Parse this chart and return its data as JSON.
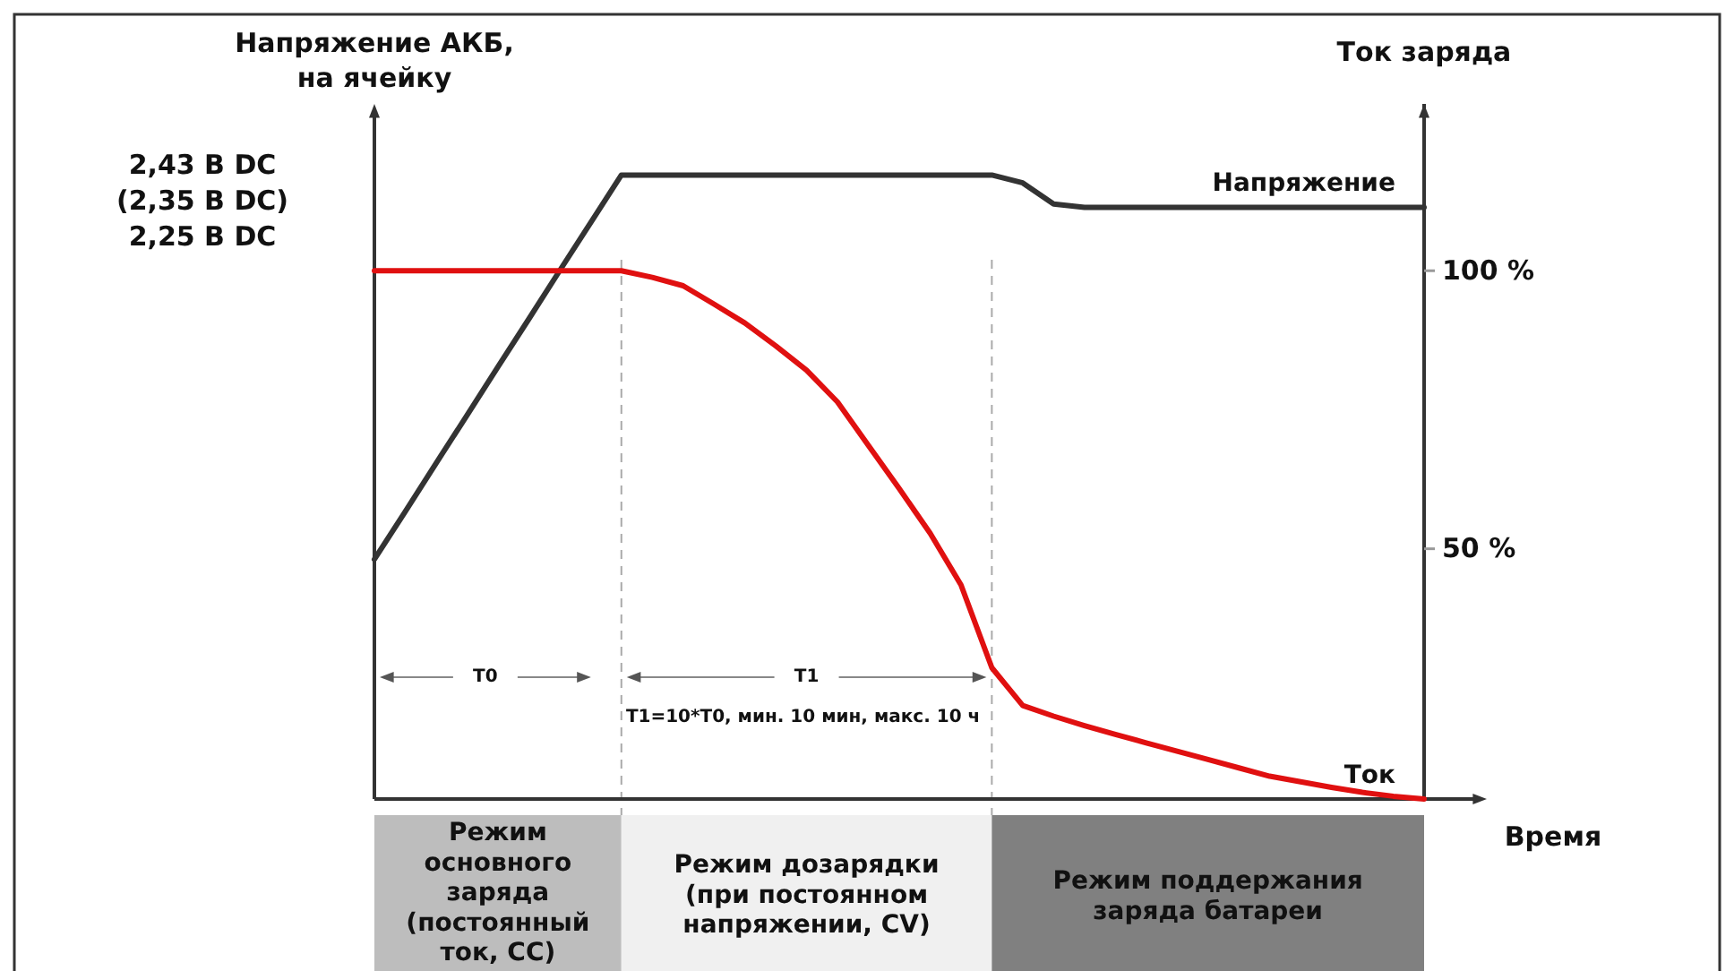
{
  "chart_data": {
    "type": "line",
    "xlabel": "Время",
    "ylabel": "Напряжение АКБ,\nна ячейку",
    "y2label": "Ток заряда",
    "categories": [
      null,
      null,
      null,
      null,
      null,
      null,
      null,
      null,
      null,
      null,
      null,
      null,
      null,
      null,
      null,
      null,
      null,
      null,
      null,
      null,
      null,
      null,
      null,
      null,
      null,
      null,
      null,
      null,
      null,
      null,
      null,
      null,
      null,
      null,
      null
    ],
    "ylim": [
      5,
      130
    ],
    "yticks": [
      {
        "value": 50,
        "label": "50 %"
      },
      {
        "value": 100,
        "label": "100 %"
      }
    ],
    "series": [
      {
        "name": "Напряжение",
        "color": "#333333",
        "values": [
          48.1,
          56.7,
          65.4,
          74.0,
          82.7,
          91.3,
          100.0,
          108.6,
          117.2,
          117.2,
          117.2,
          117.2,
          117.2,
          117.2,
          117.2,
          117.2,
          117.2,
          117.2,
          117.2,
          117.2,
          117.2,
          115.8,
          112.0,
          111.4,
          111.4,
          111.4,
          111.4,
          111.4,
          111.4,
          111.4,
          111.4,
          111.4,
          111.4,
          111.4,
          111.4
        ]
      },
      {
        "name": "Ток",
        "color": "#e01010",
        "values": [
          100,
          100,
          100,
          100,
          100,
          100,
          100,
          100,
          100,
          98.8,
          97.3,
          94.0,
          90.6,
          86.5,
          82.1,
          76.4,
          68.6,
          60.8,
          52.8,
          43.5,
          28.6,
          21.8,
          19.9,
          18.2,
          16.6,
          15.1,
          13.6,
          12.1,
          10.6,
          9.1,
          8.1,
          7.1,
          6.2,
          5.5,
          5
        ]
      }
    ],
    "annotations": [
      "2,43 В DC",
      "(2,35 В DC)",
      "2,25 В DC",
      "T0",
      "T1",
      "T1=10*T0, мин. 10 мин, макс. 10 ч",
      "Режим\nосновного\nзаряда\n(постоянный\nток, CC)",
      "Режим дозарядки\n(при постоянном\nнапряжении, CV)",
      "Режим поддержания\nзаряда батареи"
    ],
    "legend": false,
    "marker": "none",
    "line_style": "solid"
  }
}
